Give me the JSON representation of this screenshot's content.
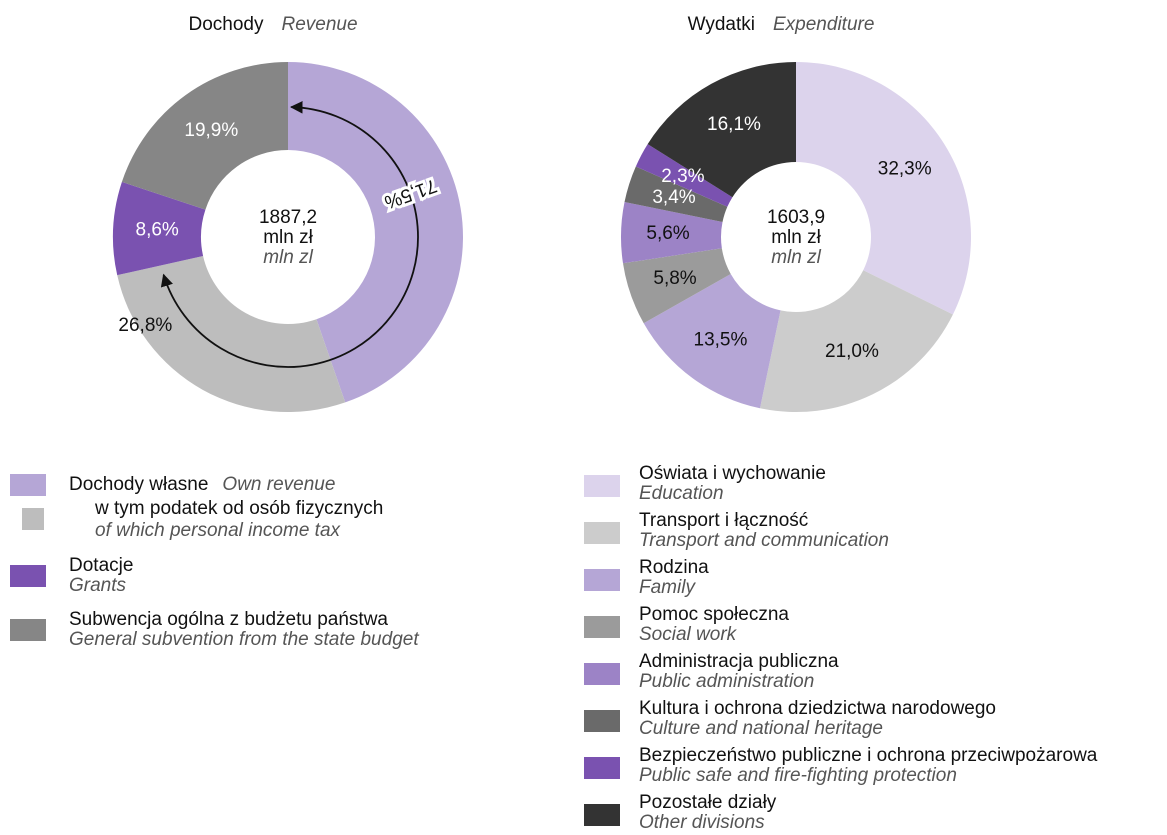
{
  "chart_data": [
    {
      "type": "donut",
      "title": "Dochody",
      "subtitle": "Revenue",
      "categories": [
        "Dochody własne",
        "w tym podatek od osób fizycznych",
        "Dotacje",
        "Subwencja ogólna z budżetu państwa"
      ],
      "categories_en": [
        "Own revenue",
        "of which personal income tax",
        "Grants",
        "General subvention from the state budget"
      ],
      "values": [
        44.7,
        26.8,
        8.6,
        19.9
      ],
      "value_labels": [
        null,
        "26,8%",
        "8,6%",
        "19,9%"
      ],
      "colors": [
        "#b5a6d6",
        "#bdbdbd",
        "#7a52b0",
        "#868686"
      ],
      "legend_indent": [
        false,
        true,
        false,
        false
      ],
      "center": {
        "value": 1887.2,
        "label": "1887,2",
        "unit": "mln zł",
        "unit_en": "mln zl"
      },
      "annotation": {
        "text": "71,5%",
        "value": 71.5
      }
    },
    {
      "type": "donut",
      "title": "Wydatki",
      "subtitle": "Expenditure",
      "categories": [
        "Oświata i wychowanie",
        "Transport i łączność",
        "Rodzina",
        "Pomoc społeczna",
        "Administracja publiczna",
        "Kultura i ochrona dziedzictwa narodowego",
        "Bezpieczeństwo publiczne i ochrona przeciwpożarowa",
        "Pozostałe działy"
      ],
      "categories_en": [
        "Education",
        "Transport and communication",
        "Family",
        "Social work",
        "Public administration",
        "Culture and national heritage",
        "Public safe and fire-fighting protection",
        "Other divisions"
      ],
      "values": [
        32.3,
        21.0,
        13.5,
        5.8,
        5.6,
        3.4,
        2.3,
        16.1
      ],
      "value_labels": [
        "32,3%",
        "21,0%",
        "13,5%",
        "5,8%",
        "5,6%",
        "3,4%",
        "2,3%",
        "16,1%"
      ],
      "colors": [
        "#dcd3ec",
        "#cccccc",
        "#b5a6d6",
        "#9b9b9b",
        "#9c83c6",
        "#6a6a6a",
        "#7a52b0",
        "#333333"
      ],
      "center": {
        "value": 1603.9,
        "label": "1603,9",
        "unit": "mln zł",
        "unit_en": "mln zl"
      }
    }
  ]
}
